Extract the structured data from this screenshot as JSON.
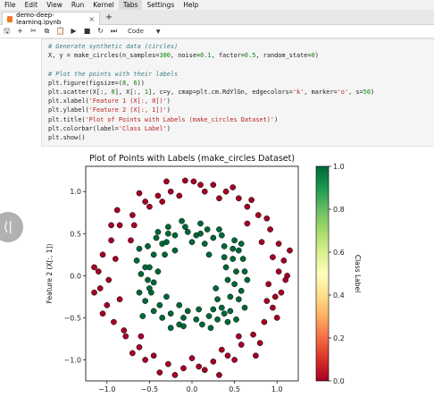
{
  "menubar": {
    "items": [
      "File",
      "Edit",
      "View",
      "Run",
      "Kernel",
      "Tabs",
      "Settings",
      "Help"
    ],
    "active": "Tabs"
  },
  "tab": {
    "filename": "demo-deep-learning.ipynb",
    "close": "×",
    "new": "+"
  },
  "toolbar": {
    "icons": [
      "save-icon",
      "add-cell-icon",
      "cut-icon",
      "copy-icon",
      "paste-icon",
      "run-icon",
      "stop-icon",
      "restart-icon",
      "fast-forward-icon"
    ],
    "glyphs": [
      "🖫",
      "+",
      "✂",
      "⧉",
      "📋",
      "▶",
      "■",
      "↻",
      "⏭"
    ],
    "cell_type": "Code"
  },
  "code": {
    "line1": "# Generate synthetic data (circles)",
    "line2a": "X, y = make_circles(n_samples=",
    "line2b": "300",
    "line2c": ", noise=",
    "line2d": "0.1",
    "line2e": ", factor=",
    "line2f": "0.5",
    "line2g": ", random_state=",
    "line2h": "0",
    "line2i": ")",
    "line3": "# Plot the points with their labels",
    "line4a": "plt.figure(figsize=(",
    "line4b": "8",
    "line4c": ", ",
    "line4d": "6",
    "line4e": "))",
    "line5a": "plt.scatter(X[:, ",
    "line5b": "0",
    "line5c": "], X[:, ",
    "line5d": "1",
    "line5e": "], c=y, cmap=plt.cm.RdYlGn, edgecolors=",
    "line5f": "'k'",
    "line5g": ", marker=",
    "line5h": "'o'",
    "line5i": ", s=",
    "line5j": "50",
    "line5k": ")",
    "line6a": "plt.xlabel(",
    "line6b": "'Feature 1 (X[:, 0])'",
    "line6c": ")",
    "line7a": "plt.ylabel(",
    "line7b": "'Feature 2 (X[:, 1])'",
    "line7c": ")",
    "line8a": "plt.title(",
    "line8b": "'Plot of Points with Labels (make_circles Dataset)'",
    "line8c": ")",
    "line9a": "plt.colorbar(label=",
    "line9b": "'Class Label'",
    "line9c": ")",
    "line10": "plt.show()"
  },
  "chart_data": {
    "type": "scatter",
    "title": "Plot of Points with Labels (make_circles Dataset)",
    "xlabel": "",
    "ylabel": "Feature 2 (X[:, 1])",
    "xlim": [
      -1.25,
      1.25
    ],
    "ylim": [
      -1.25,
      1.3
    ],
    "xticks": [
      -1.0,
      -0.5,
      0.0,
      0.5,
      1.0
    ],
    "xtick_labels": [
      "−1.0",
      "−0.5",
      "0.0",
      "0.5",
      "1.0"
    ],
    "yticks": [
      -1.0,
      -0.5,
      0.0,
      0.5,
      1.0
    ],
    "ytick_labels": [
      "−1.0",
      "−0.5",
      "0.0",
      "0.5",
      "1.0"
    ],
    "colorbar": {
      "label": "Class Label",
      "ticks": [
        0.0,
        0.2,
        0.4,
        0.6,
        0.8,
        1.0
      ],
      "tick_labels": [
        "0.0",
        "0.2",
        "0.4",
        "0.6",
        "0.8",
        "1.0"
      ],
      "cmap": "RdYlGn"
    },
    "grid": false,
    "marker_edge_color": "#000000",
    "class0_color": "#a50026",
    "class1_color": "#006837",
    "series": [
      {
        "class": 0,
        "points": [
          [
            -0.08,
            1.13
          ],
          [
            0.1,
            1.08
          ],
          [
            0.25,
            1.08
          ],
          [
            0.4,
            1.0
          ],
          [
            0.55,
            0.92
          ],
          [
            -0.25,
            1.0
          ],
          [
            -0.4,
            0.95
          ],
          [
            -0.55,
            0.88
          ],
          [
            -0.7,
            0.72
          ],
          [
            -0.85,
            0.6
          ],
          [
            -0.95,
            0.42
          ],
          [
            -1.05,
            0.25
          ],
          [
            -1.1,
            0.05
          ],
          [
            -1.08,
            -0.15
          ],
          [
            -1.0,
            -0.35
          ],
          [
            -0.92,
            -0.55
          ],
          [
            -0.78,
            -0.72
          ],
          [
            -0.62,
            -0.85
          ],
          [
            -0.45,
            -0.95
          ],
          [
            -0.28,
            -1.05
          ],
          [
            -0.1,
            -1.1
          ],
          [
            0.08,
            -1.08
          ],
          [
            0.25,
            -1.02
          ],
          [
            0.42,
            -0.95
          ],
          [
            0.58,
            -0.82
          ],
          [
            0.72,
            -0.7
          ],
          [
            0.85,
            -0.55
          ],
          [
            0.95,
            -0.38
          ],
          [
            1.05,
            -0.2
          ],
          [
            1.12,
            0.0
          ],
          [
            1.08,
            0.18
          ],
          [
            1.02,
            0.38
          ],
          [
            0.92,
            0.55
          ],
          [
            0.78,
            0.72
          ],
          [
            0.65,
            0.82
          ],
          [
            1.15,
            0.3
          ],
          [
            1.1,
            -0.05
          ],
          [
            0.98,
            -0.25
          ],
          [
            -1.15,
            0.1
          ],
          [
            -0.95,
            0.6
          ],
          [
            -0.3,
            1.12
          ],
          [
            0.02,
            1.12
          ],
          [
            0.32,
            0.92
          ],
          [
            0.7,
            0.9
          ],
          [
            0.88,
            0.68
          ],
          [
            -0.8,
            -0.65
          ],
          [
            -0.55,
            -1.0
          ],
          [
            -0.2,
            -1.18
          ],
          [
            0.15,
            -1.12
          ],
          [
            0.5,
            -1.0
          ],
          [
            0.8,
            -0.8
          ],
          [
            1.0,
            -0.5
          ],
          [
            -1.05,
            -0.45
          ],
          [
            -1.15,
            -0.2
          ],
          [
            -0.88,
            0.78
          ],
          [
            -0.62,
            0.98
          ],
          [
            -0.15,
            0.95
          ],
          [
            0.48,
            1.05
          ],
          [
            1.02,
            0.05
          ],
          [
            0.75,
            -0.95
          ],
          [
            -0.38,
            -1.15
          ],
          [
            -0.7,
            -0.92
          ],
          [
            0.32,
            -1.18
          ],
          [
            0.65,
            0.62
          ],
          [
            -0.68,
            0.6
          ],
          [
            -0.9,
            0.2
          ],
          [
            -0.98,
            -0.05
          ],
          [
            -0.5,
            0.82
          ],
          [
            0.15,
            1.0
          ],
          [
            0.9,
            -0.1
          ],
          [
            0.95,
            0.22
          ],
          [
            0.55,
            -0.72
          ],
          [
            -0.85,
            -0.28
          ],
          [
            0.0,
            -0.98
          ],
          [
            -0.35,
            0.88
          ],
          [
            0.82,
            0.4
          ],
          [
            -0.72,
            0.42
          ],
          [
            0.35,
            -0.88
          ],
          [
            -0.6,
            -0.72
          ],
          [
            0.88,
            -0.3
          ]
        ]
      },
      {
        "class": 1,
        "points": [
          [
            -0.2,
            0.48
          ],
          [
            -0.05,
            0.52
          ],
          [
            0.1,
            0.5
          ],
          [
            0.25,
            0.45
          ],
          [
            0.38,
            0.35
          ],
          [
            0.48,
            0.2
          ],
          [
            0.52,
            0.05
          ],
          [
            0.5,
            -0.1
          ],
          [
            0.45,
            -0.25
          ],
          [
            0.35,
            -0.38
          ],
          [
            0.2,
            -0.48
          ],
          [
            0.05,
            -0.52
          ],
          [
            -0.1,
            -0.5
          ],
          [
            -0.25,
            -0.45
          ],
          [
            -0.38,
            -0.35
          ],
          [
            -0.48,
            -0.2
          ],
          [
            -0.52,
            -0.05
          ],
          [
            -0.5,
            0.1
          ],
          [
            -0.45,
            0.25
          ],
          [
            -0.35,
            0.38
          ],
          [
            -0.28,
            0.5
          ],
          [
            0.32,
            0.55
          ],
          [
            0.55,
            0.3
          ],
          [
            0.58,
            -0.18
          ],
          [
            0.3,
            -0.52
          ],
          [
            -0.15,
            -0.58
          ],
          [
            -0.45,
            -0.42
          ],
          [
            -0.6,
            0.02
          ],
          [
            -0.42,
            0.45
          ],
          [
            0.0,
            0.4
          ],
          [
            0.15,
            0.38
          ],
          [
            0.4,
            0.1
          ],
          [
            0.42,
            -0.05
          ],
          [
            0.3,
            -0.28
          ],
          [
            -0.05,
            -0.42
          ],
          [
            -0.3,
            -0.25
          ],
          [
            -0.4,
            0.05
          ],
          [
            -0.32,
            0.25
          ],
          [
            0.62,
            0.05
          ],
          [
            -0.62,
            -0.2
          ],
          [
            0.1,
            0.62
          ],
          [
            -0.12,
            0.65
          ],
          [
            0.22,
            -0.62
          ],
          [
            -0.55,
            -0.3
          ],
          [
            0.5,
            0.42
          ],
          [
            -0.52,
            0.35
          ],
          [
            0.45,
            -0.42
          ],
          [
            -0.25,
            -0.62
          ],
          [
            0.65,
            -0.05
          ],
          [
            -0.65,
            0.18
          ],
          [
            0.08,
            -0.4
          ],
          [
            0.35,
            0.48
          ],
          [
            -0.45,
            -0.08
          ],
          [
            0.55,
            -0.28
          ],
          [
            -0.2,
            0.3
          ],
          [
            0.2,
            0.25
          ],
          [
            0.28,
            -0.15
          ],
          [
            -0.35,
            -0.5
          ],
          [
            0.6,
            0.2
          ],
          [
            -0.58,
            -0.48
          ],
          [
            0.42,
            -0.55
          ],
          [
            -0.08,
            0.58
          ],
          [
            0.12,
            -0.58
          ],
          [
            -0.28,
            0.58
          ],
          [
            0.48,
            0.32
          ],
          [
            -0.5,
            -0.15
          ],
          [
            0.38,
            0.22
          ],
          [
            -0.3,
            0.4
          ],
          [
            0.58,
            0.38
          ],
          [
            -0.15,
            -0.35
          ],
          [
            0.05,
            0.48
          ],
          [
            0.25,
            -0.4
          ],
          [
            -0.4,
            0.52
          ],
          [
            0.52,
            -0.52
          ],
          [
            -0.62,
            0.32
          ],
          [
            0.18,
            0.55
          ],
          [
            -0.55,
            0.1
          ],
          [
            0.62,
            -0.38
          ],
          [
            -0.1,
            -0.6
          ],
          [
            0.38,
            -0.45
          ]
        ]
      }
    ]
  }
}
